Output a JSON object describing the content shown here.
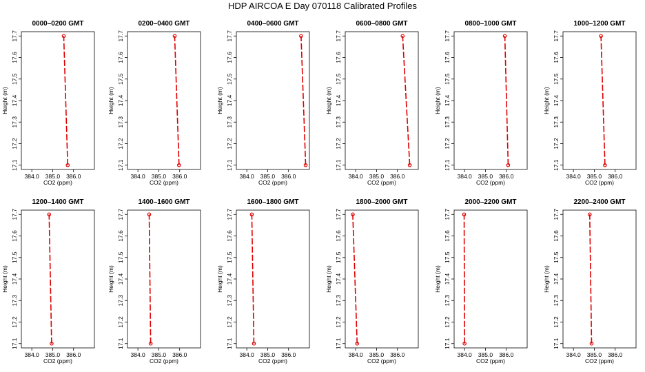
{
  "figure": {
    "title": "HDP AIRCOA E  Day 070118  Calibrated Profiles"
  },
  "chart_data": [
    {
      "type": "line",
      "title": "0000–0200 GMT",
      "xlabel": "CO2 (ppm)",
      "ylabel": "Height (m)",
      "xlim": [
        383.5,
        387.0
      ],
      "ylim": [
        17.08,
        17.72
      ],
      "xticks": [
        "384.0",
        "385.0",
        "386.0"
      ],
      "yticks": [
        "17.1",
        "17.2",
        "17.3",
        "17.4",
        "17.5",
        "17.6",
        "17.7"
      ],
      "color": "#dd0000",
      "grid": false,
      "x": [
        385.72,
        385.53
      ],
      "y": [
        17.1,
        17.7
      ]
    },
    {
      "type": "line",
      "title": "0200–0400 GMT",
      "xlabel": "CO2 (ppm)",
      "ylabel": "Height (m)",
      "xlim": [
        383.5,
        387.0
      ],
      "ylim": [
        17.08,
        17.72
      ],
      "xticks": [
        "384.0",
        "385.0",
        "386.0"
      ],
      "yticks": [
        "17.1",
        "17.2",
        "17.3",
        "17.4",
        "17.5",
        "17.6",
        "17.7"
      ],
      "color": "#dd0000",
      "grid": false,
      "x": [
        385.97,
        385.76
      ],
      "y": [
        17.1,
        17.7
      ]
    },
    {
      "type": "line",
      "title": "0400–0600 GMT",
      "xlabel": "CO2 (ppm)",
      "ylabel": "Height (m)",
      "xlim": [
        383.5,
        387.0
      ],
      "ylim": [
        17.08,
        17.72
      ],
      "xticks": [
        "384.0",
        "385.0",
        "386.0"
      ],
      "yticks": [
        "17.1",
        "17.2",
        "17.3",
        "17.4",
        "17.5",
        "17.6",
        "17.7"
      ],
      "color": "#dd0000",
      "grid": false,
      "x": [
        386.82,
        386.6
      ],
      "y": [
        17.1,
        17.7
      ]
    },
    {
      "type": "line",
      "title": "0600–0800 GMT",
      "xlabel": "CO2 (ppm)",
      "ylabel": "Height (m)",
      "xlim": [
        383.5,
        387.0
      ],
      "ylim": [
        17.08,
        17.72
      ],
      "xticks": [
        "384.0",
        "385.0",
        "386.0"
      ],
      "yticks": [
        "17.1",
        "17.2",
        "17.3",
        "17.4",
        "17.5",
        "17.6",
        "17.7"
      ],
      "color": "#dd0000",
      "grid": false,
      "x": [
        386.59,
        386.25
      ],
      "y": [
        17.1,
        17.7
      ]
    },
    {
      "type": "line",
      "title": "0800–1000 GMT",
      "xlabel": "CO2 (ppm)",
      "ylabel": "Height (m)",
      "xlim": [
        383.5,
        387.0
      ],
      "ylim": [
        17.08,
        17.72
      ],
      "xticks": [
        "384.0",
        "385.0",
        "386.0"
      ],
      "yticks": [
        "17.1",
        "17.2",
        "17.3",
        "17.4",
        "17.5",
        "17.6",
        "17.7"
      ],
      "color": "#dd0000",
      "grid": false,
      "x": [
        386.09,
        385.93
      ],
      "y": [
        17.1,
        17.7
      ]
    },
    {
      "type": "line",
      "title": "1000–1200 GMT",
      "xlabel": "CO2 (ppm)",
      "ylabel": "Height (m)",
      "xlim": [
        383.5,
        387.0
      ],
      "ylim": [
        17.08,
        17.72
      ],
      "xticks": [
        "384.0",
        "385.0",
        "386.0"
      ],
      "yticks": [
        "17.1",
        "17.2",
        "17.3",
        "17.4",
        "17.5",
        "17.6",
        "17.7"
      ],
      "color": "#dd0000",
      "grid": false,
      "x": [
        385.51,
        385.32
      ],
      "y": [
        17.1,
        17.7
      ]
    },
    {
      "type": "line",
      "title": "1200–1400 GMT",
      "xlabel": "CO2 (ppm)",
      "ylabel": "Height (m)",
      "xlim": [
        383.5,
        387.0
      ],
      "ylim": [
        17.08,
        17.72
      ],
      "xticks": [
        "384.0",
        "385.0",
        "386.0"
      ],
      "yticks": [
        "17.1",
        "17.2",
        "17.3",
        "17.4",
        "17.5",
        "17.6",
        "17.7"
      ],
      "color": "#dd0000",
      "grid": false,
      "x": [
        384.95,
        384.83
      ],
      "y": [
        17.1,
        17.7
      ]
    },
    {
      "type": "line",
      "title": "1400–1600 GMT",
      "xlabel": "CO2 (ppm)",
      "ylabel": "Height (m)",
      "xlim": [
        383.5,
        387.0
      ],
      "ylim": [
        17.08,
        17.72
      ],
      "xticks": [
        "384.0",
        "385.0",
        "386.0"
      ],
      "yticks": [
        "17.1",
        "17.2",
        "17.3",
        "17.4",
        "17.5",
        "17.6",
        "17.7"
      ],
      "color": "#dd0000",
      "grid": false,
      "x": [
        384.61,
        384.54
      ],
      "y": [
        17.1,
        17.7
      ]
    },
    {
      "type": "line",
      "title": "1600–1800 GMT",
      "xlabel": "CO2 (ppm)",
      "ylabel": "Height (m)",
      "xlim": [
        383.5,
        387.0
      ],
      "ylim": [
        17.08,
        17.72
      ],
      "xticks": [
        "384.0",
        "385.0",
        "386.0"
      ],
      "yticks": [
        "17.1",
        "17.2",
        "17.3",
        "17.4",
        "17.5",
        "17.6",
        "17.7"
      ],
      "color": "#dd0000",
      "grid": false,
      "x": [
        384.34,
        384.24
      ],
      "y": [
        17.1,
        17.7
      ]
    },
    {
      "type": "line",
      "title": "1800–2000 GMT",
      "xlabel": "CO2 (ppm)",
      "ylabel": "Height (m)",
      "xlim": [
        383.5,
        387.0
      ],
      "ylim": [
        17.08,
        17.72
      ],
      "xticks": [
        "384.0",
        "385.0",
        "386.0"
      ],
      "yticks": [
        "17.1",
        "17.2",
        "17.3",
        "17.4",
        "17.5",
        "17.6",
        "17.7"
      ],
      "color": "#dd0000",
      "grid": false,
      "x": [
        384.07,
        383.86
      ],
      "y": [
        17.1,
        17.7
      ]
    },
    {
      "type": "line",
      "title": "2000–2200 GMT",
      "xlabel": "CO2 (ppm)",
      "ylabel": "Height (m)",
      "xlim": [
        383.5,
        387.0
      ],
      "ylim": [
        17.08,
        17.72
      ],
      "xticks": [
        "384.0",
        "385.0",
        "386.0"
      ],
      "yticks": [
        "17.1",
        "17.2",
        "17.3",
        "17.4",
        "17.5",
        "17.6",
        "17.7"
      ],
      "color": "#dd0000",
      "grid": false,
      "x": [
        384.0,
        383.98
      ],
      "y": [
        17.1,
        17.7
      ]
    },
    {
      "type": "line",
      "title": "2200–2400 GMT",
      "xlabel": "CO2 (ppm)",
      "ylabel": "Height (m)",
      "xlim": [
        383.5,
        387.0
      ],
      "ylim": [
        17.08,
        17.72
      ],
      "xticks": [
        "384.0",
        "385.0",
        "386.0"
      ],
      "yticks": [
        "17.1",
        "17.2",
        "17.3",
        "17.4",
        "17.5",
        "17.6",
        "17.7"
      ],
      "color": "#dd0000",
      "grid": false,
      "x": [
        384.87,
        384.78
      ],
      "y": [
        17.1,
        17.7
      ]
    }
  ]
}
